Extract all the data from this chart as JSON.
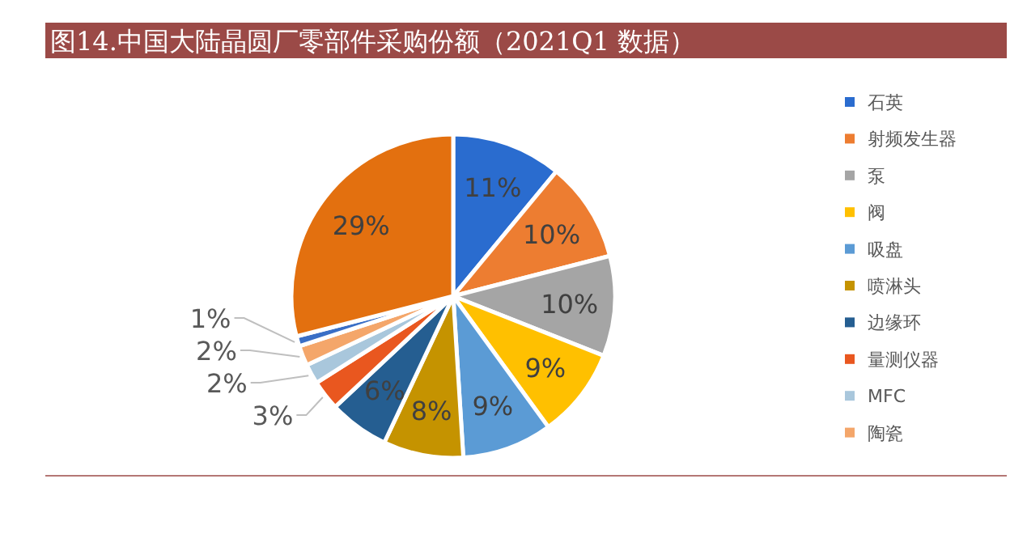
{
  "chart_data": {
    "type": "pie",
    "title": "图14.中国大陆晶圆厂零部件采购份额（2021Q1 数据）",
    "categories": [
      "石英",
      "射频发生器",
      "泵",
      "阀",
      "吸盘",
      "喷淋头",
      "边缘环",
      "量测仪器",
      "MFC",
      "陶瓷",
      null,
      null
    ],
    "values": [
      11,
      10,
      10,
      9,
      9,
      8,
      6,
      3,
      2,
      2,
      1,
      29
    ],
    "value_labels": [
      "11%",
      "10%",
      "10%",
      "9%",
      "9%",
      "8%",
      "6%",
      "3%",
      "2%",
      "2%",
      "1%",
      "29%"
    ],
    "colors": [
      "#2a6ccf",
      "#ed7d31",
      "#a5a5a5",
      "#ffc000",
      "#5b9bd5",
      "#c59300",
      "#255e91",
      "#e9571f",
      "#a9c7dc",
      "#f4a66a",
      "#3a6fc6",
      "#e3700f"
    ],
    "legend": "right"
  }
}
